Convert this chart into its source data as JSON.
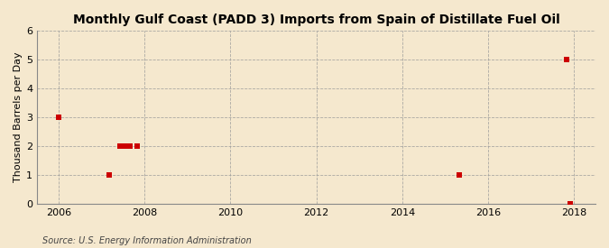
{
  "title": "Monthly Gulf Coast (PADD 3) Imports from Spain of Distillate Fuel Oil",
  "ylabel": "Thousand Barrels per Day",
  "source": "Source: U.S. Energy Information Administration",
  "background_color": "#f5e8ce",
  "plot_background_color": "#f5e8ce",
  "data_points": [
    [
      2006.0,
      3
    ],
    [
      2007.17,
      1
    ],
    [
      2007.42,
      2
    ],
    [
      2007.5,
      2
    ],
    [
      2007.58,
      2
    ],
    [
      2007.67,
      2
    ],
    [
      2007.83,
      2
    ],
    [
      2015.33,
      1
    ],
    [
      2017.83,
      5
    ],
    [
      2017.92,
      0
    ]
  ],
  "marker_color": "#cc0000",
  "marker_size": 4,
  "xlim": [
    2005.5,
    2018.5
  ],
  "ylim": [
    0,
    6
  ],
  "xticks": [
    2006,
    2008,
    2010,
    2012,
    2014,
    2016,
    2018
  ],
  "yticks": [
    0,
    1,
    2,
    3,
    4,
    5,
    6
  ],
  "grid_color": "#999999",
  "grid_style": "--",
  "grid_alpha": 0.8,
  "title_fontsize": 10,
  "ylabel_fontsize": 8,
  "tick_fontsize": 8,
  "source_fontsize": 7
}
